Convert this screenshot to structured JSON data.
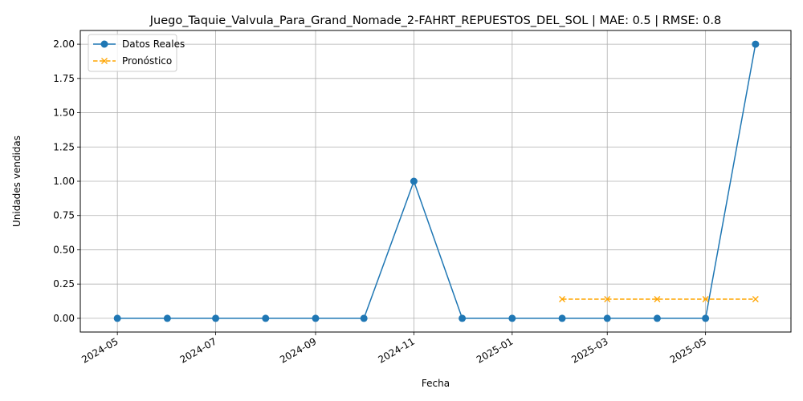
{
  "chart_data": {
    "type": "line",
    "title": "Juego_Taquie_Valvula_Para_Grand_Nomade_2-FAHRT_REPUESTOS_DEL_SOL | MAE: 0.5 | RMSE: 0.8",
    "xlabel": "Fecha",
    "ylabel": "Unidades vendidas",
    "xlim": [
      "2024-04-08",
      "2025-06-23"
    ],
    "ylim": [
      -0.1,
      2.1
    ],
    "grid": true,
    "legend_position": "top-left",
    "x_ticks": [
      "2024-05",
      "2024-07",
      "2024-09",
      "2024-11",
      "2025-01",
      "2025-03",
      "2025-05"
    ],
    "y_ticks": [
      "0.00",
      "0.25",
      "0.50",
      "0.75",
      "1.00",
      "1.25",
      "1.50",
      "1.75",
      "2.00"
    ],
    "series": [
      {
        "name": "Datos Reales",
        "color": "#1f77b4",
        "line_style": "solid",
        "marker": "circle",
        "x": [
          "2024-05-01",
          "2024-06-01",
          "2024-07-01",
          "2024-08-01",
          "2024-09-01",
          "2024-10-01",
          "2024-11-01",
          "2024-12-01",
          "2025-01-01",
          "2025-02-01",
          "2025-03-01",
          "2025-04-01",
          "2025-05-01",
          "2025-06-01"
        ],
        "values": [
          0,
          0,
          0,
          0,
          0,
          0,
          1,
          0,
          0,
          0,
          0,
          0,
          0,
          2
        ]
      },
      {
        "name": "Pronóstico",
        "color": "#ffa500",
        "line_style": "dashed",
        "marker": "x",
        "x": [
          "2025-02-01",
          "2025-03-01",
          "2025-04-01",
          "2025-05-01",
          "2025-06-01"
        ],
        "values": [
          0.14,
          0.14,
          0.14,
          0.14,
          0.14
        ]
      }
    ]
  }
}
